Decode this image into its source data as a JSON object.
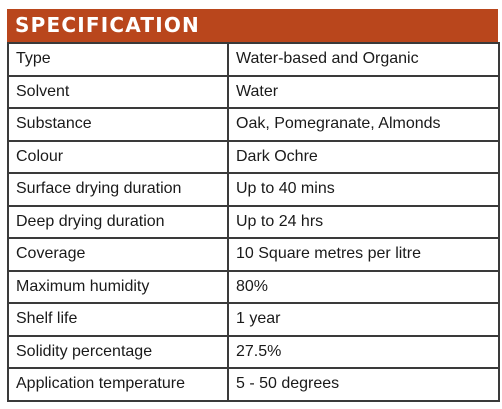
{
  "header": {
    "title": "SPECIFICATION"
  },
  "rows": [
    {
      "key": "Type",
      "value": "Water-based and Organic"
    },
    {
      "key": "Solvent",
      "value": "Water"
    },
    {
      "key": "Substance",
      "value": "Oak, Pomegranate, Almonds"
    },
    {
      "key": "Colour",
      "value": "Dark Ochre"
    },
    {
      "key": "Surface drying duration",
      "value": "Up to 40 mins"
    },
    {
      "key": "Deep drying duration",
      "value": "Up to 24 hrs"
    },
    {
      "key": "Coverage",
      "value": "10 Square metres per litre"
    },
    {
      "key": "Maximum humidity",
      "value": "80%"
    },
    {
      "key": "Shelf life",
      "value": "1 year"
    },
    {
      "key": "Solidity percentage",
      "value": "27.5%"
    },
    {
      "key": "Application temperature",
      "value": "5 - 50 degrees"
    }
  ],
  "colors": {
    "header_bg": "#b9461c",
    "header_text": "#ffffff",
    "border": "#3a3a3a"
  }
}
